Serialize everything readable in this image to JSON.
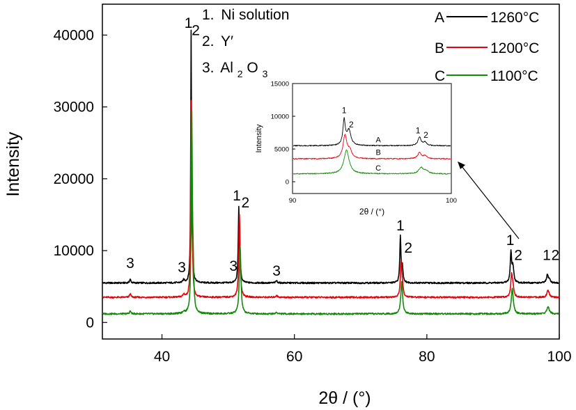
{
  "chart_data": {
    "type": "line",
    "xlabel": "2θ / (°)",
    "ylabel": "Intensity",
    "xlim": [
      31,
      100
    ],
    "ylim": [
      -2300,
      44300
    ],
    "x_ticks": [
      40,
      60,
      80,
      100
    ],
    "y_ticks": [
      0,
      10000,
      20000,
      30000,
      40000
    ],
    "legend": {
      "position": "top-right",
      "items": [
        {
          "letter": "A",
          "label": "1260°C",
          "color": "#000000"
        },
        {
          "letter": "B",
          "label": "1200°C",
          "color": "#e8000b"
        },
        {
          "letter": "C",
          "label": "1100°C",
          "color": "#138a07"
        }
      ]
    },
    "phase_key": {
      "items": [
        {
          "number": "1.",
          "text": "Ni solution"
        },
        {
          "number": "2.",
          "text": "Y′"
        },
        {
          "number": "3.",
          "text": "Al",
          "sub1": "2",
          "text2": "O",
          "sub2": "3"
        }
      ]
    },
    "peak_labels": [
      {
        "text": "3",
        "x": 35.2,
        "y": 7600
      },
      {
        "text": "3",
        "x": 43.0,
        "y": 7000
      },
      {
        "text": "1",
        "x": 44.0,
        "y": 41000
      },
      {
        "text": "2",
        "x": 45.1,
        "y": 40000
      },
      {
        "text": "3",
        "x": 50.8,
        "y": 7200
      },
      {
        "text": "1",
        "x": 51.3,
        "y": 17000
      },
      {
        "text": "2",
        "x": 52.6,
        "y": 16000
      },
      {
        "text": "3",
        "x": 57.3,
        "y": 6500
      },
      {
        "text": "1",
        "x": 76.0,
        "y": 12800
      },
      {
        "text": "2",
        "x": 77.2,
        "y": 9700
      },
      {
        "text": "1",
        "x": 92.6,
        "y": 10800
      },
      {
        "text": "2",
        "x": 93.8,
        "y": 8700
      },
      {
        "text": "1",
        "x": 98.1,
        "y": 8700
      },
      {
        "text": "2",
        "x": 99.4,
        "y": 8700
      }
    ],
    "series": [
      {
        "name": "A",
        "color": "#000000",
        "baseline": 5500,
        "peaks": [
          {
            "x": 35.2,
            "h": 500,
            "w": 0.12
          },
          {
            "x": 43.3,
            "h": 400,
            "w": 0.15
          },
          {
            "x": 44.4,
            "h": 34000,
            "w": 0.07
          },
          {
            "x": 44.55,
            "h": 4000,
            "w": 0.1
          },
          {
            "x": 51.6,
            "h": 10200,
            "w": 0.1
          },
          {
            "x": 51.8,
            "h": 2000,
            "w": 0.1
          },
          {
            "x": 57.3,
            "h": 300,
            "w": 0.15
          },
          {
            "x": 76.0,
            "h": 6400,
            "w": 0.1
          },
          {
            "x": 76.3,
            "h": 2200,
            "w": 0.12
          },
          {
            "x": 92.7,
            "h": 4200,
            "w": 0.12
          },
          {
            "x": 93.0,
            "h": 2200,
            "w": 0.15
          },
          {
            "x": 98.2,
            "h": 1100,
            "w": 0.15
          },
          {
            "x": 98.5,
            "h": 500,
            "w": 0.15
          }
        ]
      },
      {
        "name": "B",
        "color": "#e8000b",
        "baseline": 3500,
        "peaks": [
          {
            "x": 35.2,
            "h": 500,
            "w": 0.12
          },
          {
            "x": 43.3,
            "h": 400,
            "w": 0.15
          },
          {
            "x": 44.4,
            "h": 26500,
            "w": 0.08
          },
          {
            "x": 44.6,
            "h": 4000,
            "w": 0.1
          },
          {
            "x": 51.7,
            "h": 11500,
            "w": 0.12
          },
          {
            "x": 57.3,
            "h": 250,
            "w": 0.15
          },
          {
            "x": 76.1,
            "h": 4500,
            "w": 0.12
          },
          {
            "x": 76.3,
            "h": 1500,
            "w": 0.15
          },
          {
            "x": 92.8,
            "h": 3000,
            "w": 0.15
          },
          {
            "x": 93.0,
            "h": 1200,
            "w": 0.15
          },
          {
            "x": 98.3,
            "h": 1000,
            "w": 0.2
          }
        ]
      },
      {
        "name": "C",
        "color": "#138a07",
        "baseline": 1200,
        "peaks": [
          {
            "x": 35.2,
            "h": 400,
            "w": 0.12
          },
          {
            "x": 43.3,
            "h": 300,
            "w": 0.15
          },
          {
            "x": 44.5,
            "h": 27000,
            "w": 0.1
          },
          {
            "x": 44.7,
            "h": 5000,
            "w": 0.12
          },
          {
            "x": 51.8,
            "h": 9500,
            "w": 0.14
          },
          {
            "x": 57.3,
            "h": 200,
            "w": 0.15
          },
          {
            "x": 76.2,
            "h": 4500,
            "w": 0.16
          },
          {
            "x": 92.9,
            "h": 3500,
            "w": 0.18
          },
          {
            "x": 98.3,
            "h": 1000,
            "w": 0.22
          }
        ]
      }
    ],
    "inset": {
      "xlabel": "2θ / (°)",
      "ylabel": "Intensity",
      "xlim": [
        90,
        100
      ],
      "ylim": [
        -1800,
        15000
      ],
      "x_ticks": [
        90,
        100
      ],
      "y_ticks": [
        0,
        5000,
        10000,
        15000
      ],
      "peak_labels": [
        {
          "text": "1",
          "x": 93.25,
          "y": 10500
        },
        {
          "text": "2",
          "x": 93.7,
          "y": 8300
        },
        {
          "text": "1",
          "x": 97.9,
          "y": 7400
        },
        {
          "text": "2",
          "x": 98.4,
          "y": 6700
        }
      ],
      "curve_labels": [
        {
          "text": "A",
          "x": 95.4,
          "y": 6000
        },
        {
          "text": "B",
          "x": 95.4,
          "y": 4100
        },
        {
          "text": "C",
          "x": 95.4,
          "y": 1700
        }
      ],
      "series": [
        {
          "name": "A",
          "color": "#000000",
          "baseline": 5500,
          "peaks": [
            {
              "x": 93.25,
              "h": 3800,
              "w": 0.09
            },
            {
              "x": 93.55,
              "h": 2300,
              "w": 0.15
            },
            {
              "x": 98.0,
              "h": 1300,
              "w": 0.12
            },
            {
              "x": 98.35,
              "h": 500,
              "w": 0.12
            }
          ]
        },
        {
          "name": "B",
          "color": "#e8000b",
          "baseline": 3500,
          "peaks": [
            {
              "x": 93.3,
              "h": 3500,
              "w": 0.14
            },
            {
              "x": 93.6,
              "h": 1200,
              "w": 0.15
            },
            {
              "x": 98.0,
              "h": 900,
              "w": 0.14
            },
            {
              "x": 98.35,
              "h": 400,
              "w": 0.15
            }
          ]
        },
        {
          "name": "C",
          "color": "#138a07",
          "baseline": 1200,
          "peaks": [
            {
              "x": 93.4,
              "h": 3600,
              "w": 0.2
            },
            {
              "x": 98.1,
              "h": 900,
              "w": 0.18
            },
            {
              "x": 98.4,
              "h": 400,
              "w": 0.18
            }
          ]
        }
      ]
    }
  }
}
